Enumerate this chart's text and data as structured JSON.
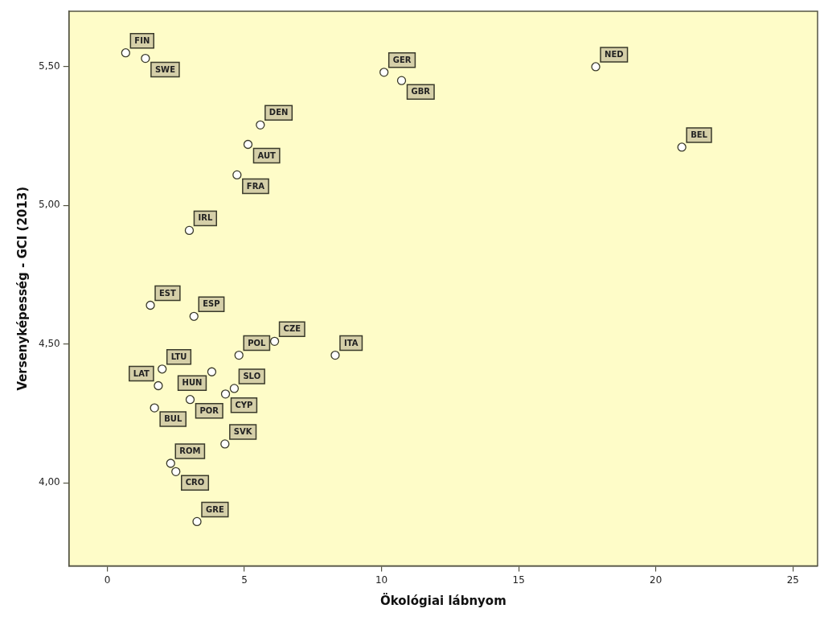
{
  "chart_data": {
    "type": "scatter",
    "xlabel": "Ökológiai lábnyom",
    "ylabel": "Versenyképesség - GCI (2013)",
    "xlim": [
      -1.4,
      25.9
    ],
    "xticks": [
      0,
      5,
      10,
      15,
      20,
      25
    ],
    "ylim": [
      3.7,
      5.7
    ],
    "yticks": [
      {
        "value": 4.0,
        "label": "4,00"
      },
      {
        "value": 4.5,
        "label": "4,50"
      },
      {
        "value": 5.0,
        "label": "5,00"
      },
      {
        "value": 5.5,
        "label": "5,50"
      }
    ],
    "grid": false,
    "legend": false,
    "marker": "circle",
    "series": [
      {
        "color": "#3a3a2a",
        "x": [
          0.67,
          1.39,
          10.09,
          10.73,
          17.81,
          20.95,
          5.58,
          5.13,
          4.73,
          2.99,
          1.57,
          3.16,
          6.1,
          4.8,
          8.31,
          2.0,
          1.86,
          3.81,
          4.63,
          4.31,
          3.02,
          1.72,
          4.29,
          2.31,
          2.5,
          3.27
        ],
        "values": [
          5.55,
          5.53,
          5.48,
          5.45,
          5.5,
          5.21,
          5.29,
          5.22,
          5.11,
          4.91,
          4.64,
          4.6,
          4.51,
          4.46,
          4.46,
          4.41,
          4.35,
          4.4,
          4.34,
          4.32,
          4.3,
          4.27,
          4.14,
          4.07,
          4.04,
          3.86
        ],
        "value_labels": [
          "FIN",
          "SWE",
          "GER",
          "GBR",
          "NED",
          "BEL",
          "DEN",
          "AUT",
          "FRA",
          "IRL",
          "EST",
          "ESP",
          "CZE",
          "POL",
          "ITA",
          "LTU",
          "LAT",
          "HUN",
          "SLO",
          "CYP",
          "POR",
          "BUL",
          "SVK",
          "ROM",
          "CRO",
          "GRE"
        ]
      }
    ]
  }
}
